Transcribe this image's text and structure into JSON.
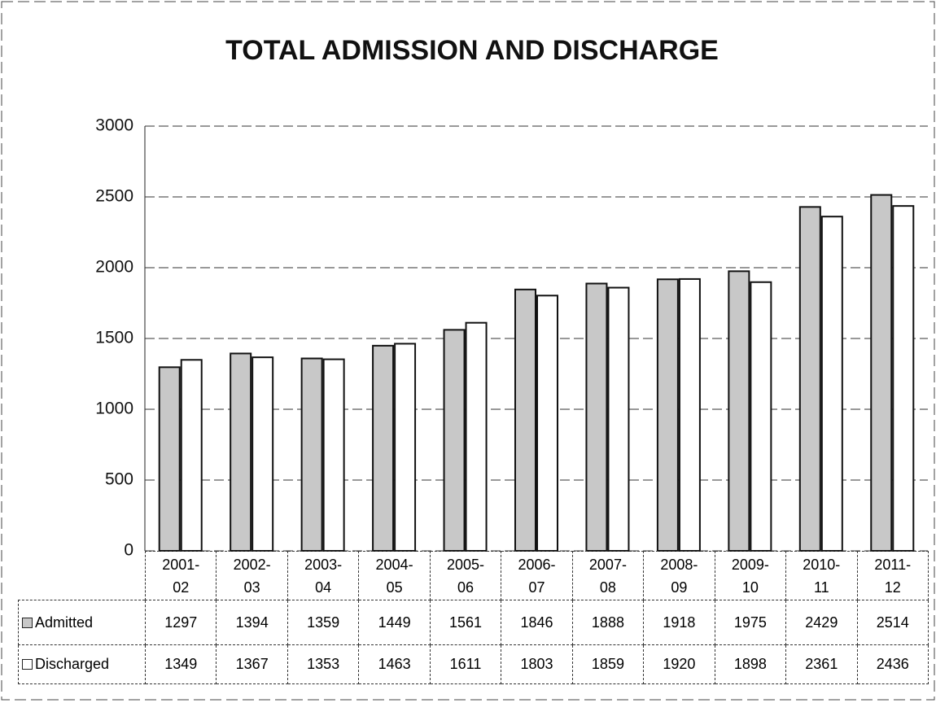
{
  "chart_data": {
    "type": "bar",
    "title": "TOTAL ADMISSION AND DISCHARGE",
    "categories": [
      "2001-02",
      "2002-03",
      "2003-04",
      "2004-05",
      "2005-06",
      "2006-07",
      "2007-08",
      "2008-09",
      "2009-10",
      "2010-11",
      "2011-12"
    ],
    "series": [
      {
        "name": "Admitted",
        "color": "#c8c8c8",
        "values": [
          1297,
          1394,
          1359,
          1449,
          1561,
          1846,
          1888,
          1918,
          1975,
          2429,
          2514
        ]
      },
      {
        "name": "Discharged",
        "color": "#ffffff",
        "values": [
          1349,
          1367,
          1353,
          1463,
          1611,
          1803,
          1859,
          1920,
          1898,
          2361,
          2436
        ]
      }
    ],
    "ylim": [
      0,
      3000
    ],
    "yticks": [
      0,
      500,
      1000,
      1500,
      2000,
      2500,
      3000
    ],
    "grid": true
  }
}
